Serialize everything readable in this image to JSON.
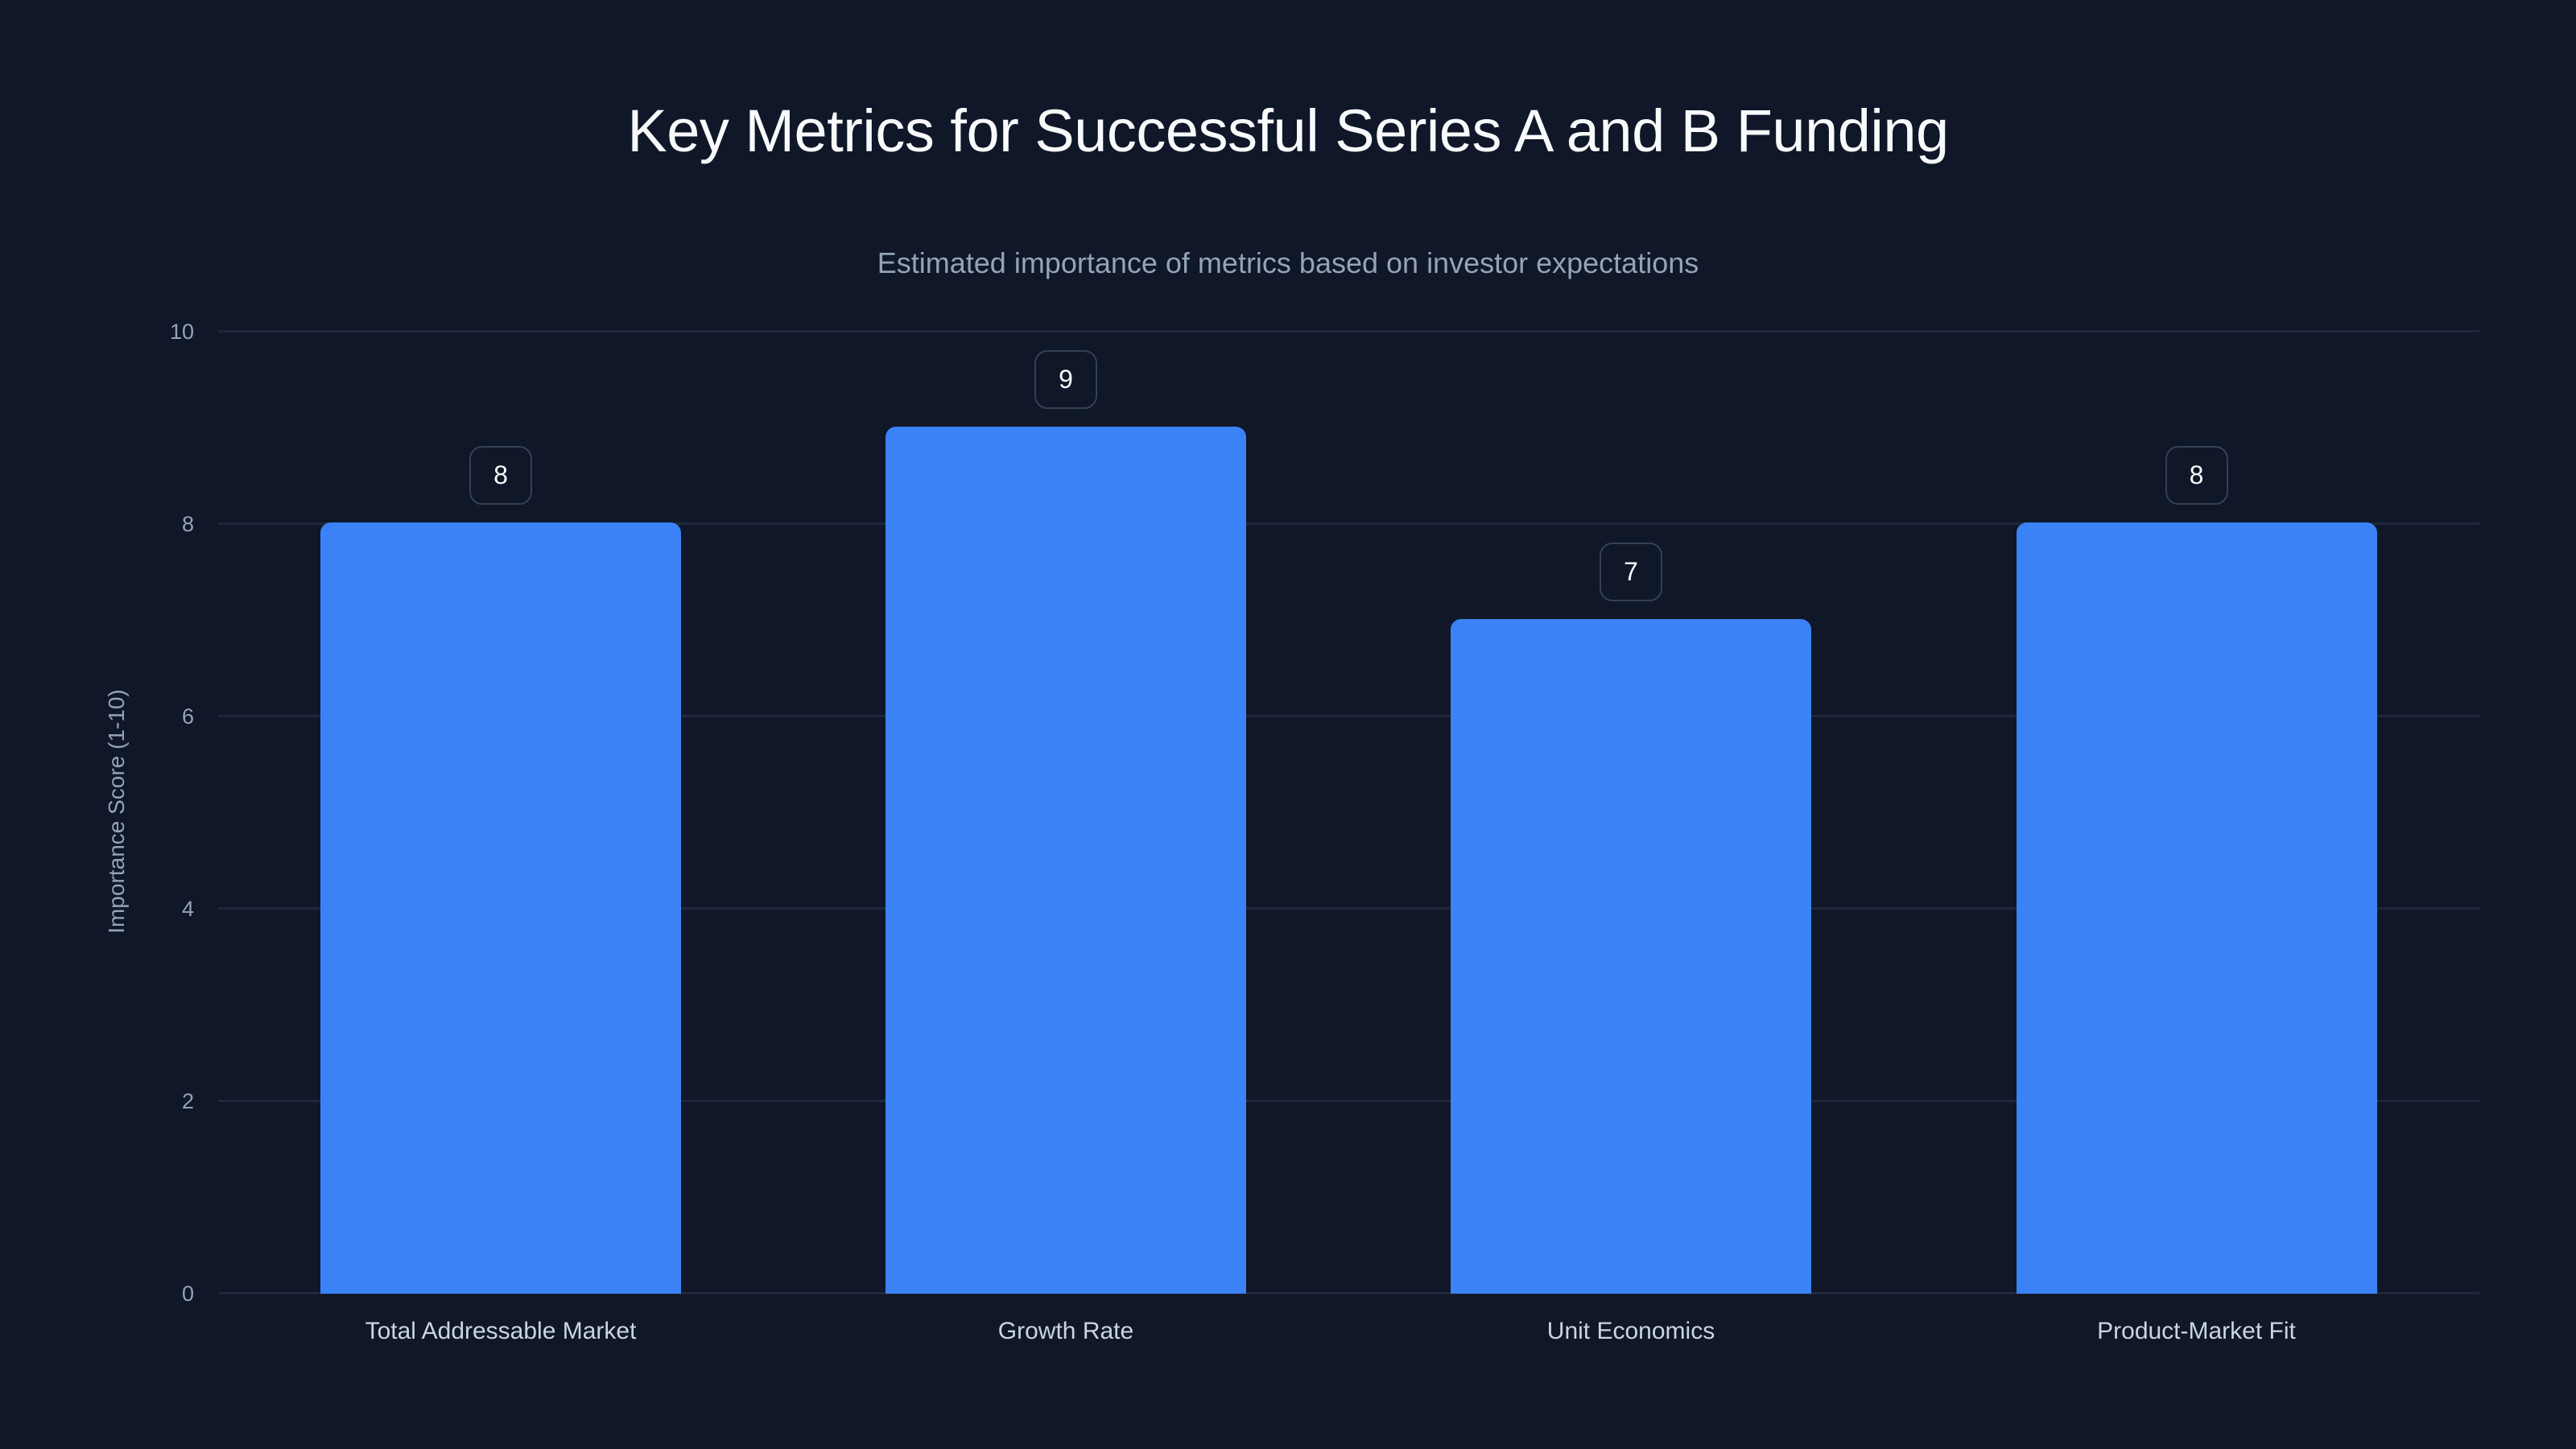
{
  "title": "Key Metrics for Successful Series A and B Funding",
  "subtitle": "Estimated importance of metrics based on investor expectations",
  "y_axis": {
    "label": "Importance Score (1-10)",
    "ticks": [
      "0",
      "2",
      "4",
      "6",
      "8",
      "10"
    ]
  },
  "colors": {
    "background": "#0f1729",
    "bar": "#3b82f6",
    "grid": "#1e283b",
    "label_border": "#334155"
  },
  "bars": [
    {
      "category": "Total Addressable Market",
      "value": 8,
      "label": "8"
    },
    {
      "category": "Growth Rate",
      "value": 9,
      "label": "9"
    },
    {
      "category": "Unit Economics",
      "value": 7,
      "label": "7"
    },
    {
      "category": "Product-Market Fit",
      "value": 8,
      "label": "8"
    }
  ],
  "chart_data": {
    "type": "bar",
    "title": "Key Metrics for Successful Series A and B Funding",
    "subtitle": "Estimated importance of metrics based on investor expectations",
    "categories": [
      "Total Addressable Market",
      "Growth Rate",
      "Unit Economics",
      "Product-Market Fit"
    ],
    "values": [
      8,
      9,
      7,
      8
    ],
    "xlabel": "",
    "ylabel": "Importance Score (1-10)",
    "ylim": [
      0,
      10
    ],
    "yticks": [
      0,
      2,
      4,
      6,
      8,
      10
    ],
    "grid": true,
    "data_labels": true,
    "legend": null
  }
}
